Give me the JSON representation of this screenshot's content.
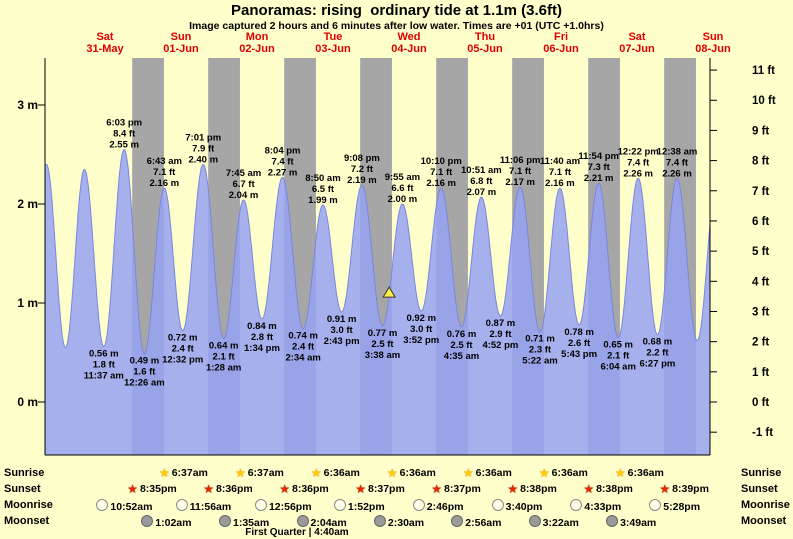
{
  "header": {
    "title": "Panoramas: rising  ordinary tide at 1.1m (3.6ft)",
    "subtitle": "Image captured 2 hours and 6 minutes after low water. Times are +01 (UTC +1.0hrs)"
  },
  "chart_data": {
    "type": "area",
    "title": "Panoramas: rising  ordinary tide at 1.1m (3.6ft)",
    "subtitle": "Image captured 2 hours and 6 minutes after low water. Times are +01 (UTC +1.0hrs)",
    "legend": "none",
    "grid": "off",
    "t_range_hours_from_first_midnight": [
      -6.95,
      203.05
    ],
    "ylim_m": [
      -0.54,
      3.48
    ],
    "days": [
      {
        "name": "Sat",
        "date": "31-May"
      },
      {
        "name": "Sun",
        "date": "01-Jun"
      },
      {
        "name": "Mon",
        "date": "02-Jun"
      },
      {
        "name": "Tue",
        "date": "03-Jun"
      },
      {
        "name": "Wed",
        "date": "04-Jun"
      },
      {
        "name": "Thu",
        "date": "05-Jun"
      },
      {
        "name": "Fri",
        "date": "06-Jun"
      },
      {
        "name": "Sat",
        "date": "07-Jun"
      },
      {
        "name": "Sun",
        "date": "08-Jun"
      }
    ],
    "y_axis_m": [
      {
        "v": 0,
        "label": "0 m"
      },
      {
        "v": 1,
        "label": "1 m"
      },
      {
        "v": 2,
        "label": "2 m"
      },
      {
        "v": 3,
        "label": "3 m"
      }
    ],
    "y_axis_ft": [
      {
        "v": -1,
        "label": "-1 ft"
      },
      {
        "v": 0,
        "label": "0 ft"
      },
      {
        "v": 1,
        "label": "1 ft"
      },
      {
        "v": 2,
        "label": "2 ft"
      },
      {
        "v": 3,
        "label": "3 ft"
      },
      {
        "v": 4,
        "label": "4 ft"
      },
      {
        "v": 5,
        "label": "5 ft"
      },
      {
        "v": 6,
        "label": "6 ft"
      },
      {
        "v": 7,
        "label": "7 ft"
      },
      {
        "v": 8,
        "label": "8 ft"
      },
      {
        "v": 9,
        "label": "9 ft"
      },
      {
        "v": 10,
        "label": "10 ft"
      },
      {
        "v": 11,
        "label": "11 ft"
      }
    ],
    "tide_events": [
      {
        "type": "high",
        "t": -6.5,
        "h": 2.4
      },
      {
        "type": "low",
        "t": -0.5,
        "h": 0.55
      },
      {
        "type": "high",
        "t": 5.5,
        "h": 2.35
      },
      {
        "type": "low",
        "t": 11.62,
        "h": 0.56,
        "m": "0.56 m",
        "ft": "1.8 ft",
        "time": "11:37 am"
      },
      {
        "type": "high",
        "t": 18.05,
        "h": 2.55,
        "m": "2.55 m",
        "ft": "8.4 ft",
        "time": "6:03 pm"
      },
      {
        "type": "low",
        "t": 24.43,
        "h": 0.49,
        "m": "0.49 m",
        "ft": "1.6 ft",
        "time": "12:26 am"
      },
      {
        "type": "high",
        "t": 30.72,
        "h": 2.16,
        "m": "2.16 m",
        "ft": "7.1 ft",
        "time": "6:43 am"
      },
      {
        "type": "low",
        "t": 36.53,
        "h": 0.72,
        "m": "0.72 m",
        "ft": "2.4 ft",
        "time": "12:32 pm"
      },
      {
        "type": "high",
        "t": 43.02,
        "h": 2.4,
        "m": "2.40 m",
        "ft": "7.9 ft",
        "time": "7:01 pm"
      },
      {
        "type": "low",
        "t": 49.47,
        "h": 0.64,
        "m": "0.64 m",
        "ft": "2.1 ft",
        "time": "1:28 am"
      },
      {
        "type": "high",
        "t": 55.75,
        "h": 2.04,
        "m": "2.04 m",
        "ft": "6.7 ft",
        "time": "7:45 am"
      },
      {
        "type": "low",
        "t": 61.57,
        "h": 0.84,
        "m": "0.84 m",
        "ft": "2.8 ft",
        "time": "1:34 pm"
      },
      {
        "type": "high",
        "t": 68.07,
        "h": 2.27,
        "m": "2.27 m",
        "ft": "7.4 ft",
        "time": "8:04 pm"
      },
      {
        "type": "low",
        "t": 74.57,
        "h": 0.74,
        "m": "0.74 m",
        "ft": "2.4 ft",
        "time": "2:34 am"
      },
      {
        "type": "high",
        "t": 80.83,
        "h": 1.99,
        "m": "1.99 m",
        "ft": "6.5 ft",
        "time": "8:50 am"
      },
      {
        "type": "low",
        "t": 86.72,
        "h": 0.91,
        "m": "0.91 m",
        "ft": "3.0 ft",
        "time": "2:43 pm"
      },
      {
        "type": "high",
        "t": 93.13,
        "h": 2.19,
        "m": "2.19 m",
        "ft": "7.2 ft",
        "time": "9:08 pm"
      },
      {
        "type": "low",
        "t": 99.63,
        "h": 0.77,
        "m": "0.77 m",
        "ft": "2.5 ft",
        "time": "3:38 am"
      },
      {
        "type": "high",
        "t": 105.92,
        "h": 2.0,
        "m": "2.00 m",
        "ft": "6.6 ft",
        "time": "9:55 am"
      },
      {
        "type": "low",
        "t": 111.87,
        "h": 0.92,
        "m": "0.92 m",
        "ft": "3.0 ft",
        "time": "3:52 pm"
      },
      {
        "type": "high",
        "t": 118.17,
        "h": 2.16,
        "m": "2.16 m",
        "ft": "7.1 ft",
        "time": "10:10 pm"
      },
      {
        "type": "low",
        "t": 124.58,
        "h": 0.76,
        "m": "0.76 m",
        "ft": "2.5 ft",
        "time": "4:35 am"
      },
      {
        "type": "high",
        "t": 130.85,
        "h": 2.07,
        "m": "2.07 m",
        "ft": "6.8 ft",
        "time": "10:51 am"
      },
      {
        "type": "low",
        "t": 136.87,
        "h": 0.87,
        "m": "0.87 m",
        "ft": "2.9 ft",
        "time": "4:52 pm"
      },
      {
        "type": "high",
        "t": 143.1,
        "h": 2.17,
        "m": "2.17 m",
        "ft": "7.1 ft",
        "time": "11:06 pm"
      },
      {
        "type": "low",
        "t": 149.37,
        "h": 0.71,
        "m": "0.71 m",
        "ft": "2.3 ft",
        "time": "5:22 am"
      },
      {
        "type": "high",
        "t": 155.67,
        "h": 2.16,
        "m": "2.16 m",
        "ft": "7.1 ft",
        "time": "11:40 am"
      },
      {
        "type": "low",
        "t": 161.72,
        "h": 0.78,
        "m": "0.78 m",
        "ft": "2.6 ft",
        "time": "5:43 pm"
      },
      {
        "type": "high",
        "t": 167.9,
        "h": 2.21,
        "m": "2.21 m",
        "ft": "7.3 ft",
        "time": "11:54 pm"
      },
      {
        "type": "low",
        "t": 174.07,
        "h": 0.65,
        "m": "0.65 m",
        "ft": "2.1 ft",
        "time": "6:04 am"
      },
      {
        "type": "high",
        "t": 180.37,
        "h": 2.26,
        "m": "2.26 m",
        "ft": "7.4 ft",
        "time": "12:22 pm"
      },
      {
        "type": "low",
        "t": 186.45,
        "h": 0.68,
        "m": "0.68 m",
        "ft": "2.2 ft",
        "time": "6:27 pm"
      },
      {
        "type": "high",
        "t": 192.63,
        "h": 2.26,
        "m": "2.26 m",
        "ft": "7.4 ft",
        "time": "12:38 am"
      },
      {
        "type": "low",
        "t": 199.0,
        "h": 0.62
      },
      {
        "type": "high",
        "t": 205.4,
        "h": 2.3
      }
    ],
    "marker": {
      "t": 101.73,
      "h": 1.1,
      "meaning": "current tide 1.1m rising"
    },
    "colors": {
      "background": "#ffffcc",
      "night_band": "#a6a6a6",
      "tide_fill": "#96a2f2",
      "tide_edge": "#7a86dd",
      "day_label": "#e00000",
      "marker": "#ffef40"
    }
  },
  "astro": {
    "row_labels": [
      "Sunrise",
      "Sunset",
      "Moonrise",
      "Moonset"
    ],
    "sunrise": [
      {
        "day": 1,
        "time": "6:37am"
      },
      {
        "day": 2,
        "time": "6:37am"
      },
      {
        "day": 3,
        "time": "6:36am"
      },
      {
        "day": 4,
        "time": "6:36am"
      },
      {
        "day": 5,
        "time": "6:36am"
      },
      {
        "day": 6,
        "time": "6:36am"
      },
      {
        "day": 7,
        "time": "6:36am"
      }
    ],
    "sunset": [
      {
        "day": 0,
        "time": "8:35pm"
      },
      {
        "day": 1,
        "time": "8:36pm"
      },
      {
        "day": 2,
        "time": "8:36pm"
      },
      {
        "day": 3,
        "time": "8:37pm"
      },
      {
        "day": 4,
        "time": "8:37pm"
      },
      {
        "day": 5,
        "time": "8:38pm"
      },
      {
        "day": 6,
        "time": "8:38pm"
      },
      {
        "day": 7,
        "time": "8:39pm"
      }
    ],
    "moonrise": [
      {
        "day": 0,
        "time": "10:52am"
      },
      {
        "day": 1,
        "time": "11:56am"
      },
      {
        "day": 2,
        "time": "12:56pm"
      },
      {
        "day": 3,
        "time": "1:52pm"
      },
      {
        "day": 4,
        "time": "2:46pm"
      },
      {
        "day": 5,
        "time": "3:40pm"
      },
      {
        "day": 6,
        "time": "4:33pm"
      },
      {
        "day": 7,
        "time": "5:28pm"
      }
    ],
    "moonset": [
      {
        "day": 1,
        "time": "1:02am"
      },
      {
        "day": 2,
        "time": "1:35am"
      },
      {
        "day": 3,
        "time": "2:04am"
      },
      {
        "day": 4,
        "time": "2:30am"
      },
      {
        "day": 5,
        "time": "2:56am"
      },
      {
        "day": 6,
        "time": "3:22am"
      },
      {
        "day": 7,
        "time": "3:49am"
      }
    ],
    "moon_phase": "First Quarter | 4:40am"
  }
}
